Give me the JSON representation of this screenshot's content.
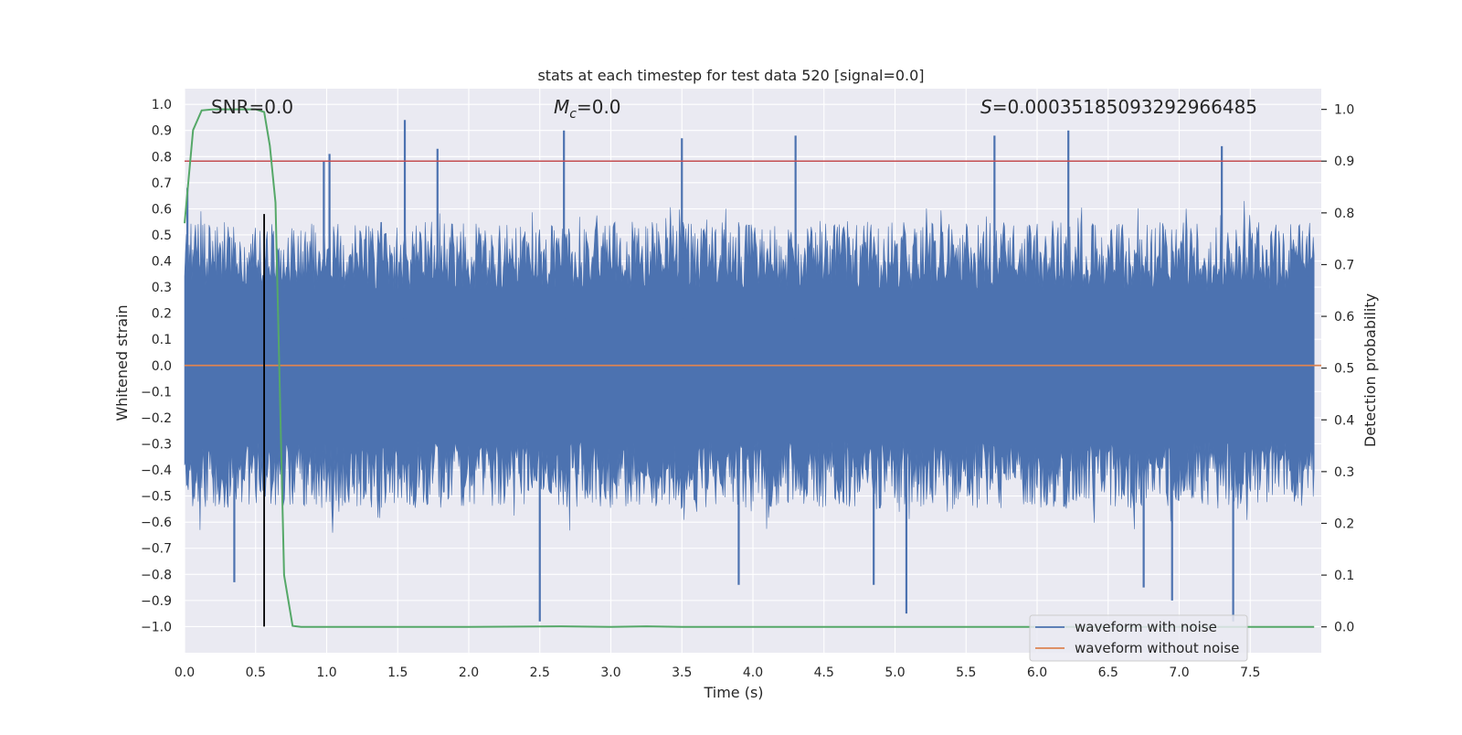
{
  "chart_data": {
    "type": "line",
    "title": "stats at each timestep for test data 520 [signal=0.0]",
    "xlabel": "Time (s)",
    "ylabel_left": "Whitened strain",
    "ylabel_right": "Detection probability",
    "xlim": [
      0.0,
      8.0
    ],
    "ylim_left": [
      -1.1,
      1.06
    ],
    "ylim_right": [
      -0.05,
      1.04
    ],
    "x_ticks": [
      "0.0",
      "0.5",
      "1.0",
      "1.5",
      "2.0",
      "2.5",
      "3.0",
      "3.5",
      "4.0",
      "4.5",
      "5.0",
      "5.5",
      "6.0",
      "6.5",
      "7.0",
      "7.5"
    ],
    "y_left_ticks": [
      "1.0",
      "0.9",
      "0.8",
      "0.7",
      "0.6",
      "0.5",
      "0.4",
      "0.3",
      "0.2",
      "0.1",
      "0.0",
      "-0.1",
      "-0.2",
      "-0.3",
      "-0.4",
      "-0.5",
      "-0.6",
      "-0.7",
      "-0.8",
      "-0.9",
      "-1.0"
    ],
    "y_right_ticks": [
      "1.0",
      "0.9",
      "0.8",
      "0.7",
      "0.6",
      "0.5",
      "0.4",
      "0.3",
      "0.2",
      "0.1",
      "0.0"
    ],
    "annotations": {
      "snr": "SNR=0.0",
      "mc_symbol": "M",
      "mc_sub": "c",
      "mc_value": "=0.0",
      "s_symbol": "S",
      "s_value": "=0.00035185093292966485"
    },
    "legend": {
      "placement": "lower-right",
      "entries": [
        {
          "label": "waveform with noise",
          "color": "#4c72b0"
        },
        {
          "label": "waveform without noise",
          "color": "#dd8452"
        }
      ]
    },
    "threshold": {
      "value": 0.9,
      "axis": "right",
      "color": "#c44e52"
    },
    "marker_line": {
      "x": 0.56,
      "y_from": -1.0,
      "y_to": 0.58,
      "color": "#000000"
    },
    "noise_waveform": {
      "name": "waveform with noise",
      "color": "#4c72b0",
      "x_range": [
        0.0,
        8.0
      ],
      "typical_envelope": [
        -0.55,
        0.55
      ],
      "peak_max": 0.94,
      "peak_min": -0.99
    },
    "clean_waveform": {
      "name": "waveform without noise",
      "color": "#dd8452",
      "value": 0.0
    },
    "noise_peaks": [
      {
        "x": 0.02,
        "y": 0.68
      },
      {
        "x": 0.35,
        "y": -0.83
      },
      {
        "x": 0.98,
        "y": 0.78
      },
      {
        "x": 1.02,
        "y": 0.81
      },
      {
        "x": 1.55,
        "y": 0.94
      },
      {
        "x": 1.78,
        "y": 0.83
      },
      {
        "x": 2.5,
        "y": -0.98
      },
      {
        "x": 2.67,
        "y": 0.9
      },
      {
        "x": 3.5,
        "y": 0.87
      },
      {
        "x": 3.9,
        "y": -0.84
      },
      {
        "x": 4.3,
        "y": 0.88
      },
      {
        "x": 4.85,
        "y": -0.84
      },
      {
        "x": 5.08,
        "y": -0.95
      },
      {
        "x": 5.7,
        "y": 0.88
      },
      {
        "x": 6.22,
        "y": 0.9
      },
      {
        "x": 6.75,
        "y": -0.85
      },
      {
        "x": 6.95,
        "y": -0.9
      },
      {
        "x": 7.3,
        "y": 0.84
      },
      {
        "x": 7.38,
        "y": -0.98
      }
    ],
    "detection_probability": {
      "color": "#55a868",
      "points": [
        [
          0.0,
          0.78
        ],
        [
          0.06,
          0.96
        ],
        [
          0.12,
          0.998
        ],
        [
          0.2,
          1.0
        ],
        [
          0.3,
          1.0
        ],
        [
          0.4,
          1.0
        ],
        [
          0.5,
          1.0
        ],
        [
          0.56,
          0.995
        ],
        [
          0.6,
          0.93
        ],
        [
          0.64,
          0.82
        ],
        [
          0.7,
          0.1
        ],
        [
          0.76,
          0.002
        ],
        [
          0.82,
          0.0
        ],
        [
          2.0,
          0.0
        ],
        [
          2.65,
          0.001
        ],
        [
          3.0,
          0.0
        ],
        [
          3.25,
          0.001
        ],
        [
          3.5,
          0.0
        ],
        [
          7.95,
          0.0
        ]
      ]
    }
  }
}
